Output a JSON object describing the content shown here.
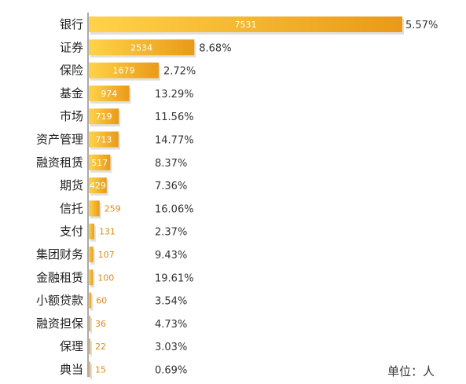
{
  "chart_data": {
    "type": "bar",
    "orientation": "horizontal",
    "categories": [
      "银行",
      "证券",
      "保险",
      "基金",
      "市场",
      "资产管理",
      "融资租赁",
      "期货",
      "信托",
      "支付",
      "集团财务",
      "金融租赁",
      "小额贷款",
      "融资担保",
      "保理",
      "典当"
    ],
    "values": [
      7531,
      2534,
      1679,
      974,
      719,
      713,
      517,
      429,
      259,
      131,
      107,
      100,
      60,
      36,
      22,
      15
    ],
    "percentages": [
      "5.57%",
      "8.68%",
      "2.72%",
      "13.29%",
      "11.56%",
      "14.77%",
      "8.37%",
      "7.36%",
      "16.06%",
      "2.37%",
      "9.43%",
      "19.61%",
      "3.54%",
      "4.73%",
      "3.03%",
      "0.69%"
    ],
    "unit_label": "单位：人",
    "colors": {
      "bar_light": "#ffd34a",
      "bar_dark": "#e99a18",
      "value_text_outside": "#e08a1e",
      "value_text_inside": "#ffffff",
      "axis": "#555555",
      "label_text": "#222222",
      "percent_text": "#333333"
    }
  }
}
